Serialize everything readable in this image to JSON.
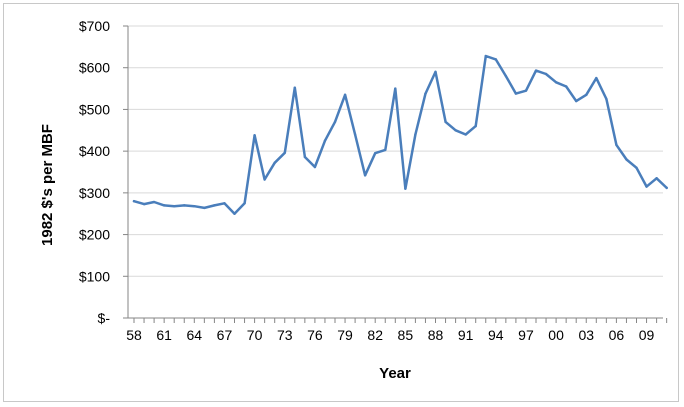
{
  "chart_data": {
    "type": "line",
    "title": "",
    "xlabel": "Year",
    "ylabel": "1982 $'s per MBF",
    "ylim": [
      0,
      700
    ],
    "y_ticks": [
      {
        "value": 0,
        "label": "$-"
      },
      {
        "value": 100,
        "label": "$100"
      },
      {
        "value": 200,
        "label": "$200"
      },
      {
        "value": 300,
        "label": "$300"
      },
      {
        "value": 400,
        "label": "$400"
      },
      {
        "value": 500,
        "label": "$500"
      },
      {
        "value": 600,
        "label": "$600"
      },
      {
        "value": 700,
        "label": "$700"
      }
    ],
    "x_tick_labels": [
      "58",
      "61",
      "64",
      "67",
      "70",
      "73",
      "76",
      "79",
      "82",
      "85",
      "88",
      "91",
      "94",
      "97",
      "00",
      "03",
      "06",
      "09"
    ],
    "grid": true,
    "legend": "none",
    "line_color": "#4a7ebb",
    "series": [
      {
        "x": [
          1958,
          1959,
          1960,
          1961,
          1962,
          1963,
          1964,
          1965,
          1966,
          1967,
          1968,
          1969,
          1970,
          1971,
          1972,
          1973,
          1974,
          1975,
          1976,
          1977,
          1978,
          1979,
          1980,
          1981,
          1982,
          1983,
          1984,
          1985,
          1986,
          1987,
          1988,
          1989,
          1990,
          1991,
          1992,
          1993,
          1994,
          1995,
          1996,
          1997,
          1998,
          1999,
          2000,
          2001,
          2002,
          2003,
          2004,
          2005,
          2006,
          2007,
          2008,
          2009,
          2010,
          2011
        ],
        "values": [
          280,
          273,
          278,
          270,
          268,
          270,
          268,
          264,
          270,
          275,
          250,
          275,
          438,
          332,
          372,
          396,
          552,
          386,
          362,
          425,
          470,
          535,
          440,
          342,
          395,
          403,
          550,
          310,
          440,
          538,
          590,
          470,
          450,
          440,
          460,
          628,
          620,
          580,
          538,
          545,
          593,
          585,
          565,
          555,
          520,
          535,
          575,
          525,
          415,
          380,
          360,
          315,
          335,
          312
        ]
      }
    ]
  }
}
